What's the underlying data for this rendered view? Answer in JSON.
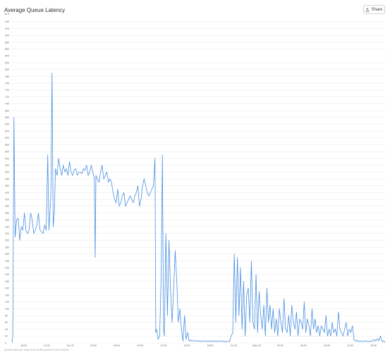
{
  "header": {
    "title": "Average Queue Latency",
    "share_label": "Share",
    "share_icon": "share-icon"
  },
  "colors": {
    "line": "#4a90e2",
    "grid": "#e8e8e8",
    "axis_text": "#6c6f75"
  },
  "chart_data": {
    "type": "line",
    "title": "Average Queue Latency",
    "ylabel": "",
    "xlabel": "",
    "y_unit_label": "1e-6",
    "ylim": [
      0,
      950
    ],
    "grid": true,
    "y_ticks": [
      0,
      20,
      40,
      60,
      80,
      100,
      120,
      140,
      160,
      180,
      200,
      220,
      240,
      260,
      280,
      300,
      320,
      340,
      360,
      380,
      400,
      420,
      440,
      460,
      480,
      500,
      520,
      540,
      560,
      580,
      600,
      620,
      640,
      660,
      680,
      700,
      720,
      740,
      760,
      780,
      800,
      820,
      840,
      860,
      880,
      900,
      920,
      940
    ],
    "x_ticks": [
      "18:00",
      "21:00",
      "Tue 22",
      "03:00",
      "06:00",
      "09:00",
      "12:00",
      "15:00",
      "18:00",
      "21:00",
      "Wed 23",
      "03:00",
      "06:00",
      "09:00",
      "12:00",
      "15:00"
    ],
    "x_range_hours": [
      0,
      48
    ],
    "x_tick_hours": [
      1.5,
      4.5,
      7.5,
      10.5,
      13.5,
      16.5,
      19.5,
      22.5,
      25.5,
      28.5,
      31.5,
      34.5,
      37.5,
      40.5,
      43.5,
      46.5
    ],
    "series": [
      {
        "values": [
          [
            0,
            0
          ],
          [
            0.1,
            20
          ],
          [
            0.25,
            660
          ],
          [
            0.4,
            310
          ],
          [
            0.6,
            360
          ],
          [
            0.8,
            365
          ],
          [
            1.0,
            300
          ],
          [
            1.2,
            340
          ],
          [
            1.4,
            330
          ],
          [
            1.6,
            380
          ],
          [
            1.8,
            330
          ],
          [
            2.0,
            320
          ],
          [
            2.2,
            330
          ],
          [
            2.4,
            380
          ],
          [
            2.6,
            360
          ],
          [
            2.8,
            320
          ],
          [
            3.0,
            330
          ],
          [
            3.2,
            345
          ],
          [
            3.4,
            380
          ],
          [
            3.6,
            330
          ],
          [
            3.8,
            325
          ],
          [
            4.0,
            320
          ],
          [
            4.2,
            345
          ],
          [
            4.4,
            330
          ],
          [
            4.6,
            550
          ],
          [
            4.75,
            330
          ],
          [
            5.0,
            430
          ],
          [
            5.15,
            790
          ],
          [
            5.3,
            340
          ],
          [
            5.45,
            380
          ],
          [
            5.6,
            510
          ],
          [
            5.8,
            490
          ],
          [
            6.0,
            540
          ],
          [
            6.2,
            510
          ],
          [
            6.4,
            490
          ],
          [
            6.6,
            520
          ],
          [
            6.8,
            500
          ],
          [
            7.0,
            510
          ],
          [
            7.2,
            490
          ],
          [
            7.4,
            530
          ],
          [
            7.6,
            500
          ],
          [
            7.8,
            490
          ],
          [
            8.0,
            505
          ],
          [
            8.2,
            510
          ],
          [
            8.4,
            490
          ],
          [
            8.6,
            500
          ],
          [
            8.8,
            500
          ],
          [
            9.0,
            495
          ],
          [
            9.2,
            510
          ],
          [
            9.4,
            505
          ],
          [
            9.6,
            520
          ],
          [
            9.8,
            490
          ],
          [
            10.0,
            500
          ],
          [
            10.2,
            520
          ],
          [
            10.4,
            500
          ],
          [
            10.6,
            480
          ],
          [
            10.7,
            250
          ],
          [
            10.8,
            490
          ],
          [
            11.0,
            480
          ],
          [
            11.2,
            470
          ],
          [
            11.4,
            500
          ],
          [
            11.6,
            520
          ],
          [
            11.8,
            480
          ],
          [
            12.0,
            490
          ],
          [
            12.2,
            500
          ],
          [
            12.4,
            470
          ],
          [
            12.6,
            480
          ],
          [
            12.8,
            470
          ],
          [
            13.0,
            440
          ],
          [
            13.2,
            420
          ],
          [
            13.4,
            410
          ],
          [
            13.6,
            450
          ],
          [
            13.8,
            400
          ],
          [
            14.0,
            410
          ],
          [
            14.2,
            430
          ],
          [
            14.4,
            440
          ],
          [
            14.6,
            400
          ],
          [
            14.8,
            410
          ],
          [
            15.0,
            420
          ],
          [
            15.2,
            430
          ],
          [
            15.4,
            420
          ],
          [
            15.6,
            410
          ],
          [
            15.8,
            430
          ],
          [
            16.0,
            440
          ],
          [
            16.2,
            460
          ],
          [
            16.4,
            400
          ],
          [
            16.6,
            420
          ],
          [
            16.8,
            460
          ],
          [
            17.0,
            480
          ],
          [
            17.2,
            460
          ],
          [
            17.4,
            440
          ],
          [
            17.6,
            430
          ],
          [
            17.8,
            440
          ],
          [
            18.0,
            450
          ],
          [
            18.2,
            460
          ],
          [
            18.4,
            540
          ],
          [
            18.5,
            30
          ],
          [
            18.6,
            40
          ],
          [
            18.8,
            10
          ],
          [
            19.0,
            20
          ],
          [
            19.2,
            200
          ],
          [
            19.35,
            550
          ],
          [
            19.5,
            40
          ],
          [
            19.6,
            20
          ],
          [
            19.8,
            320
          ],
          [
            20.0,
            80
          ],
          [
            20.2,
            300
          ],
          [
            20.4,
            150
          ],
          [
            20.6,
            60
          ],
          [
            20.8,
            160
          ],
          [
            21.0,
            270
          ],
          [
            21.2,
            180
          ],
          [
            21.4,
            60
          ],
          [
            21.6,
            100
          ],
          [
            21.8,
            40
          ],
          [
            22.0,
            5
          ],
          [
            22.2,
            80
          ],
          [
            22.4,
            10
          ],
          [
            22.6,
            30
          ],
          [
            22.8,
            5
          ],
          [
            23.0,
            8
          ],
          [
            23.2,
            5
          ],
          [
            23.4,
            7
          ],
          [
            23.6,
            6
          ],
          [
            23.8,
            5
          ],
          [
            24.0,
            6
          ],
          [
            24.2,
            5
          ],
          [
            24.4,
            4
          ],
          [
            24.6,
            5
          ],
          [
            24.8,
            6
          ],
          [
            25.0,
            5
          ],
          [
            25.2,
            4
          ],
          [
            25.4,
            5
          ],
          [
            25.6,
            6
          ],
          [
            25.8,
            5
          ],
          [
            26.0,
            4
          ],
          [
            26.2,
            5
          ],
          [
            26.4,
            4
          ],
          [
            26.6,
            5
          ],
          [
            26.8,
            6
          ],
          [
            27.0,
            4
          ],
          [
            27.2,
            5
          ],
          [
            27.4,
            4
          ],
          [
            27.6,
            3
          ],
          [
            27.8,
            5
          ],
          [
            28.0,
            4
          ],
          [
            28.2,
            20
          ],
          [
            28.4,
            30
          ],
          [
            28.6,
            260
          ],
          [
            28.8,
            60
          ],
          [
            29.0,
            250
          ],
          [
            29.2,
            80
          ],
          [
            29.4,
            220
          ],
          [
            29.6,
            40
          ],
          [
            29.8,
            180
          ],
          [
            30.0,
            20
          ],
          [
            30.2,
            140
          ],
          [
            30.4,
            160
          ],
          [
            30.6,
            60
          ],
          [
            30.8,
            240
          ],
          [
            31.0,
            60
          ],
          [
            31.2,
            40
          ],
          [
            31.4,
            200
          ],
          [
            31.6,
            30
          ],
          [
            31.8,
            150
          ],
          [
            32.0,
            80
          ],
          [
            32.2,
            40
          ],
          [
            32.4,
            110
          ],
          [
            32.6,
            20
          ],
          [
            32.8,
            160
          ],
          [
            33.0,
            60
          ],
          [
            33.2,
            110
          ],
          [
            33.4,
            40
          ],
          [
            33.6,
            100
          ],
          [
            33.8,
            30
          ],
          [
            34.0,
            70
          ],
          [
            34.2,
            20
          ],
          [
            34.4,
            100
          ],
          [
            34.6,
            60
          ],
          [
            34.8,
            30
          ],
          [
            35.0,
            130
          ],
          [
            35.2,
            40
          ],
          [
            35.4,
            30
          ],
          [
            35.6,
            80
          ],
          [
            35.8,
            20
          ],
          [
            36.0,
            110
          ],
          [
            36.2,
            60
          ],
          [
            36.4,
            40
          ],
          [
            36.6,
            90
          ],
          [
            36.8,
            20
          ],
          [
            37.0,
            70
          ],
          [
            37.2,
            60
          ],
          [
            37.4,
            40
          ],
          [
            37.6,
            120
          ],
          [
            37.8,
            30
          ],
          [
            38.0,
            70
          ],
          [
            38.2,
            50
          ],
          [
            38.4,
            20
          ],
          [
            38.6,
            100
          ],
          [
            38.8,
            40
          ],
          [
            39.0,
            70
          ],
          [
            39.2,
            30
          ],
          [
            39.4,
            50
          ],
          [
            39.6,
            20
          ],
          [
            39.8,
            50
          ],
          [
            40.0,
            40
          ],
          [
            40.2,
            30
          ],
          [
            40.4,
            80
          ],
          [
            40.6,
            20
          ],
          [
            40.8,
            40
          ],
          [
            41.0,
            20
          ],
          [
            41.2,
            60
          ],
          [
            41.4,
            30
          ],
          [
            41.6,
            40
          ],
          [
            41.8,
            20
          ],
          [
            42.0,
            90
          ],
          [
            42.2,
            40
          ],
          [
            42.4,
            30
          ],
          [
            42.6,
            20
          ],
          [
            42.8,
            40
          ],
          [
            43.0,
            60
          ],
          [
            43.2,
            20
          ],
          [
            43.4,
            40
          ],
          [
            43.6,
            30
          ],
          [
            43.8,
            50
          ],
          [
            44.0,
            10
          ],
          [
            44.2,
            5
          ],
          [
            44.4,
            8
          ],
          [
            44.6,
            3
          ],
          [
            44.8,
            6
          ],
          [
            45.0,
            5
          ],
          [
            45.2,
            3
          ],
          [
            45.4,
            6
          ],
          [
            45.6,
            4
          ],
          [
            45.8,
            5
          ],
          [
            46.0,
            3
          ],
          [
            46.2,
            6
          ],
          [
            46.4,
            4
          ],
          [
            46.6,
            10
          ],
          [
            46.8,
            5
          ],
          [
            47.0,
            12
          ],
          [
            47.2,
            6
          ],
          [
            47.4,
            20
          ],
          [
            47.6,
            4
          ],
          [
            47.8,
            6
          ],
          [
            48.0,
            2
          ]
        ]
      }
    ]
  },
  "footer": {
    "note": "Queue latency: avg of all metric points in the bucket"
  }
}
